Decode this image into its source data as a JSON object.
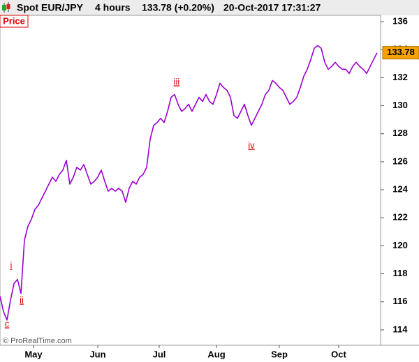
{
  "header": {
    "instrument": "Spot EUR/JPY",
    "timeframe": "4 hours",
    "change": "133.78 (+0.20%)",
    "timestamp": "20-Oct-2017 17:31:27"
  },
  "panel_label": "Price",
  "copyright": "© ProRealTime.com",
  "chart_data": {
    "type": "line",
    "color": "#9b00d0",
    "values": [
      116.4,
      115.3,
      114.7,
      116.1,
      117.3,
      117.6,
      116.6,
      120.4,
      121.4,
      121.9,
      122.6,
      122.9,
      123.4,
      123.9,
      124.4,
      124.9,
      124.6,
      125.1,
      125.4,
      126.1,
      124.4,
      124.9,
      125.6,
      125.4,
      125.8,
      125.1,
      124.4,
      124.6,
      124.9,
      125.4,
      124.6,
      123.9,
      124.1,
      123.9,
      124.1,
      123.9,
      123.1,
      124.1,
      124.6,
      124.4,
      124.9,
      125.1,
      125.6,
      127.6,
      128.6,
      128.8,
      129.1,
      128.8,
      129.6,
      130.6,
      130.8,
      130.1,
      129.6,
      129.8,
      130.1,
      129.6,
      130.1,
      130.6,
      130.3,
      130.8,
      130.3,
      130.1,
      130.8,
      131.6,
      131.3,
      131.1,
      130.6,
      129.3,
      129.1,
      129.6,
      130.1,
      129.3,
      128.6,
      129.1,
      129.6,
      130.1,
      130.8,
      131.1,
      131.8,
      131.6,
      131.3,
      131.1,
      130.6,
      130.1,
      130.3,
      130.6,
      131.3,
      132.1,
      132.6,
      133.3,
      134.1,
      134.3,
      134.1,
      133.1,
      132.6,
      132.8,
      133.1,
      132.8,
      132.6,
      132.6,
      132.3,
      132.8,
      133.1,
      132.8,
      132.6,
      132.3,
      132.8,
      133.3,
      133.78
    ],
    "xlim": [
      0,
      109
    ],
    "xticks": [
      {
        "value": 9.6,
        "label": "May"
      },
      {
        "value": 28,
        "label": "Jun"
      },
      {
        "value": 45.6,
        "label": "Jul"
      },
      {
        "value": 62,
        "label": "Aug"
      },
      {
        "value": 80,
        "label": "Sep"
      },
      {
        "value": 97,
        "label": "Oct"
      }
    ],
    "ylim": [
      112.9,
      136.45
    ],
    "yticks": [
      114,
      116,
      118,
      120,
      122,
      124,
      126,
      128,
      130,
      132,
      134,
      136
    ],
    "annotations": [
      "c",
      "i",
      "ii",
      "iii",
      "iv"
    ]
  }
}
